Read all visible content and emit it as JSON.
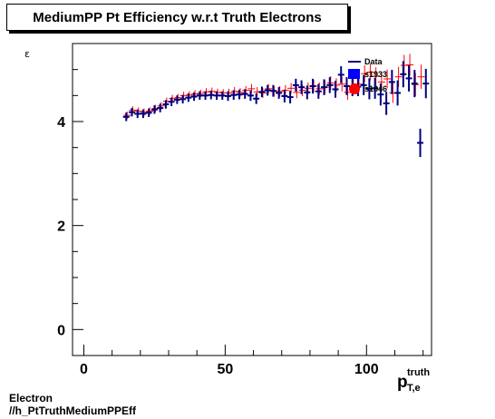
{
  "title": "MediumPP Pt Efficiency w.r.t Truth Electrons",
  "ylabel": "ε",
  "xlabel_main": "p",
  "xlabel_sup": "truth",
  "xlabel_sub": "T,e",
  "footer": {
    "line1": "Electron",
    "line2": "//h_PtTruthMediumPPEff"
  },
  "chart_data": {
    "type": "scatter",
    "title": "MediumPP Pt Efficiency w.r.t Truth Electrons",
    "xlabel": "p_T,e^truth",
    "ylabel": "ε",
    "xlim": [
      -4,
      123
    ],
    "ylim": [
      -0.5,
      5.5
    ],
    "xticks": [
      0,
      50,
      100
    ],
    "yticks": [
      0,
      2,
      4
    ],
    "grid": false,
    "legend_position": "top-right",
    "series": [
      {
        "name": "Data",
        "color": "#000080",
        "x": [
          15,
          17,
          19,
          21,
          23,
          25,
          27,
          29,
          31,
          33,
          35,
          37,
          39,
          41,
          43,
          45,
          47,
          49,
          51,
          53,
          55,
          57,
          59,
          61,
          63,
          65,
          67,
          69,
          71,
          73,
          75,
          77,
          79,
          81,
          83,
          85,
          87,
          89,
          91,
          93,
          95,
          97,
          99,
          101,
          103,
          105,
          107,
          109,
          111,
          113,
          115,
          117,
          119,
          121
        ],
        "y": [
          4.09,
          4.18,
          4.15,
          4.15,
          4.17,
          4.23,
          4.26,
          4.33,
          4.38,
          4.42,
          4.43,
          4.46,
          4.48,
          4.5,
          4.5,
          4.51,
          4.5,
          4.5,
          4.49,
          4.51,
          4.52,
          4.53,
          4.5,
          4.44,
          4.57,
          4.6,
          4.59,
          4.55,
          4.49,
          4.47,
          4.7,
          4.66,
          4.56,
          4.68,
          4.58,
          4.66,
          4.7,
          4.62,
          4.9,
          4.68,
          4.66,
          4.67,
          4.7,
          4.63,
          4.64,
          4.52,
          4.35,
          4.76,
          4.55,
          4.91,
          4.83,
          4.73,
          3.59,
          4.73
        ],
        "yerr": [
          0.03,
          0.03,
          0.03,
          0.03,
          0.03,
          0.03,
          0.03,
          0.03,
          0.03,
          0.03,
          0.03,
          0.03,
          0.03,
          0.03,
          0.03,
          0.03,
          0.03,
          0.03,
          0.04,
          0.04,
          0.04,
          0.04,
          0.05,
          0.05,
          0.05,
          0.05,
          0.06,
          0.06,
          0.07,
          0.07,
          0.07,
          0.08,
          0.08,
          0.09,
          0.09,
          0.1,
          0.1,
          0.11,
          0.11,
          0.12,
          0.12,
          0.13,
          0.14,
          0.15,
          0.15,
          0.16,
          0.17,
          0.18,
          0.19,
          0.2,
          0.2,
          0.21,
          0.22,
          0.23
        ]
      },
      {
        "name": "s1933",
        "color": "#0000ff",
        "x": [],
        "y": []
      },
      {
        "name": "s1846",
        "color": "#ff0000",
        "x": [
          15,
          17,
          19,
          21,
          23,
          25,
          27,
          29,
          31,
          33,
          35,
          37,
          39,
          41,
          43,
          45,
          47,
          49,
          51,
          53,
          55,
          57,
          59,
          61,
          63,
          65,
          67,
          69,
          71,
          73,
          75,
          77,
          79,
          81,
          83,
          85,
          87,
          89,
          91,
          93,
          95,
          97,
          99,
          101,
          103,
          105,
          107,
          109,
          111,
          113,
          115,
          117,
          119
        ],
        "y": [
          4.12,
          4.22,
          4.2,
          4.18,
          4.2,
          4.25,
          4.3,
          4.39,
          4.44,
          4.46,
          4.5,
          4.51,
          4.53,
          4.54,
          4.57,
          4.58,
          4.56,
          4.55,
          4.55,
          4.58,
          4.56,
          4.6,
          4.63,
          4.57,
          4.55,
          4.63,
          4.58,
          4.58,
          4.6,
          4.64,
          4.56,
          4.6,
          4.64,
          4.68,
          4.63,
          4.66,
          4.74,
          4.7,
          4.72,
          4.56,
          4.86,
          4.72,
          4.92,
          4.95,
          4.87,
          4.76,
          4.82,
          4.55,
          4.86,
          5.08,
          5.09,
          4.71,
          4.86
        ],
        "yerr": [
          0.02,
          0.02,
          0.02,
          0.02,
          0.02,
          0.02,
          0.02,
          0.02,
          0.02,
          0.02,
          0.02,
          0.02,
          0.02,
          0.02,
          0.02,
          0.02,
          0.02,
          0.02,
          0.03,
          0.03,
          0.03,
          0.03,
          0.04,
          0.04,
          0.04,
          0.04,
          0.05,
          0.05,
          0.05,
          0.05,
          0.06,
          0.06,
          0.06,
          0.07,
          0.07,
          0.08,
          0.08,
          0.08,
          0.09,
          0.09,
          0.1,
          0.1,
          0.11,
          0.11,
          0.12,
          0.12,
          0.13,
          0.14,
          0.14,
          0.15,
          0.16,
          0.17,
          0.18
        ]
      }
    ]
  }
}
